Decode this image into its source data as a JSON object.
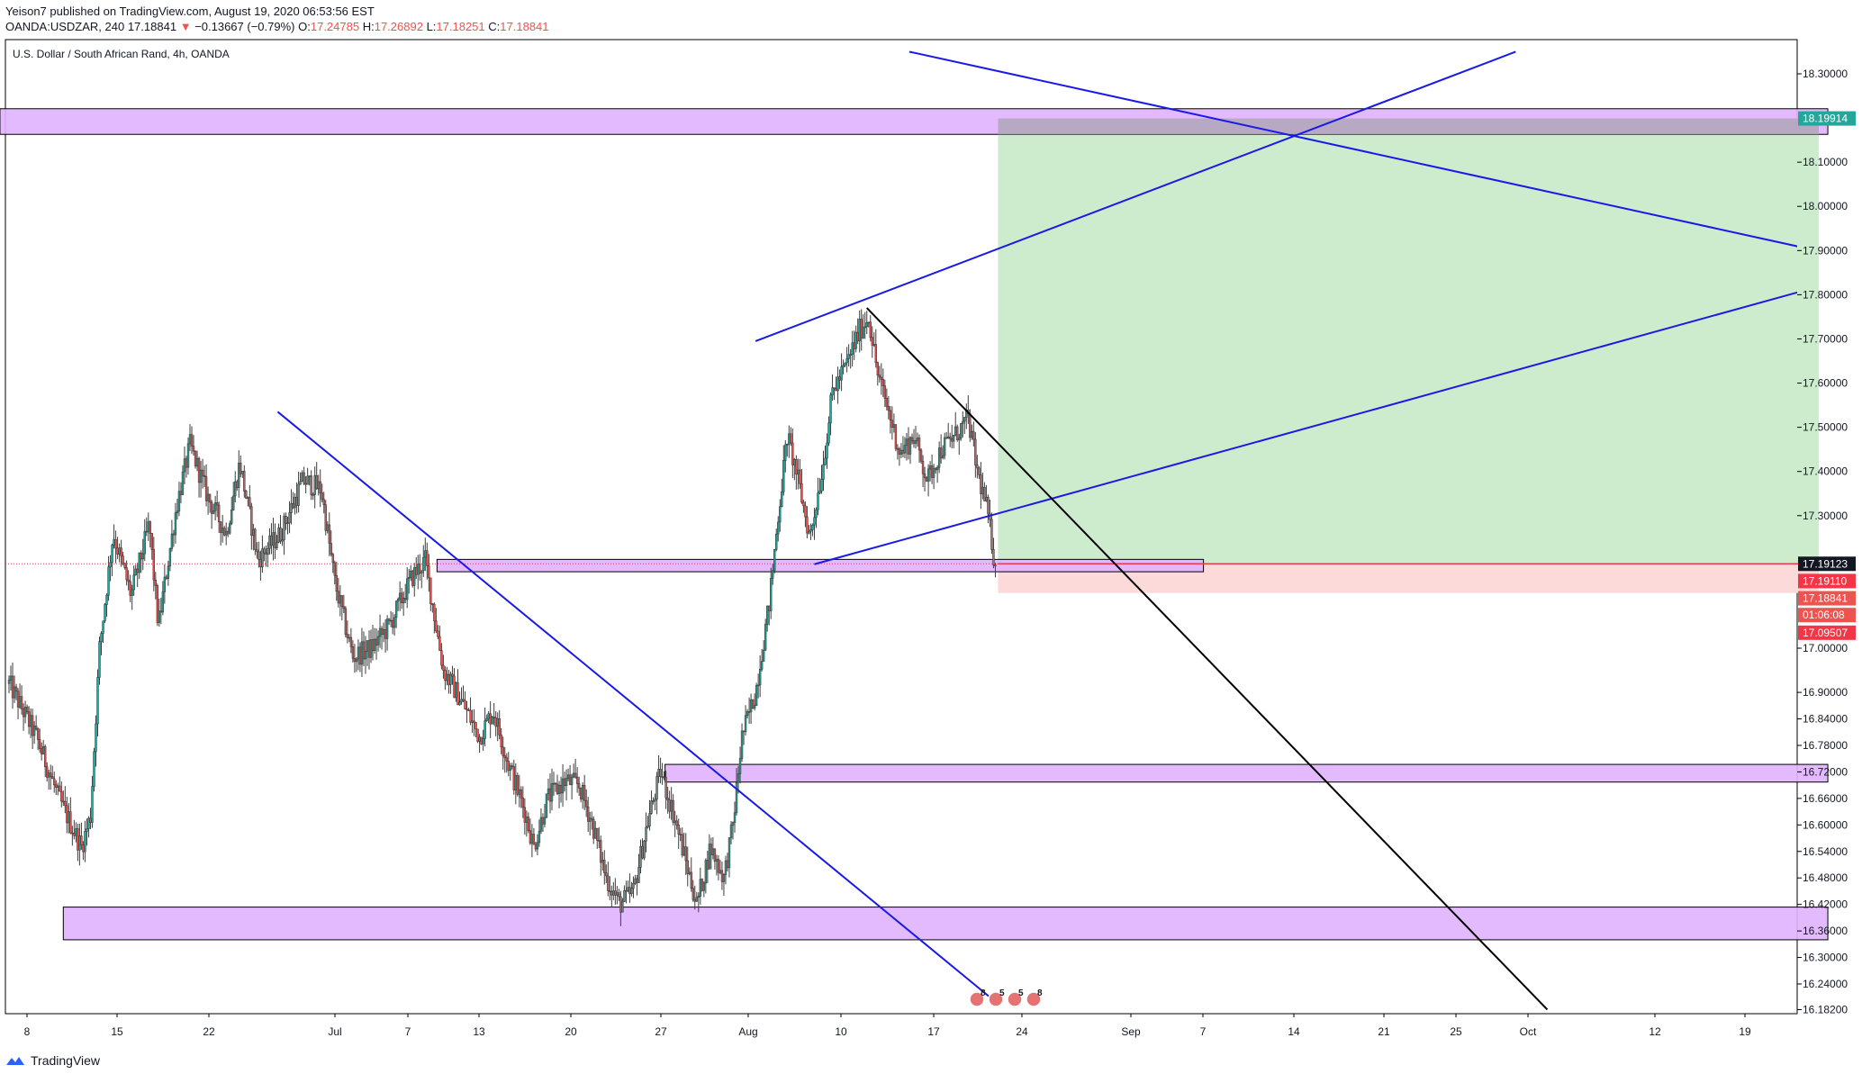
{
  "header": {
    "published_line": "Yeison7 published on TradingView.com, August 19, 2020 06:53:56 EST",
    "symbol": "OANDA:USDZAR, 240",
    "last": "17.18841",
    "change_arrow": "▼",
    "change": "−0.13667 (−0.79%)",
    "open_label": "O:",
    "open": "17.24785",
    "high_label": "H:",
    "high": "17.26892",
    "low_label": "L:",
    "low": "17.18251",
    "close_label": "C:",
    "close": "17.18841"
  },
  "footer": {
    "brand": "TradingView"
  },
  "colors": {
    "up": "#26a69a",
    "down": "#ef5350",
    "candle": "#3d3d3d",
    "zone": "#e1b3ff",
    "trendline": "#1a1ae6",
    "target": "#cdebcd",
    "stop": "#fddada",
    "price_line": "#f23645"
  },
  "chart_data": {
    "type": "candlestick",
    "title": "U.S. Dollar / South African Rand, 4h, OANDA",
    "x_ticks": [
      "8",
      "15",
      "22",
      "Jul",
      "7",
      "13",
      "20",
      "27",
      "Aug",
      "10",
      "17",
      "24",
      "Sep",
      "7",
      "14",
      "21",
      "25",
      "Oct",
      "12",
      "19"
    ],
    "y_ticks": [
      "18.30000",
      "18.10000",
      "18.00000",
      "17.90000",
      "17.80000",
      "17.70000",
      "17.60000",
      "17.50000",
      "17.40000",
      "17.30000",
      "17.00000",
      "16.90000",
      "16.84000",
      "16.78000",
      "16.72000",
      "16.66000",
      "16.60000",
      "16.54000",
      "16.48000",
      "16.42000",
      "16.36000",
      "16.30000",
      "16.24000",
      "16.18200"
    ],
    "y_range": [
      16.182,
      18.35
    ],
    "scale_labels": [
      {
        "text": "18.19914",
        "color": "#26a69a",
        "price": 18.199
      },
      {
        "text": "17.19123",
        "color": "#131722",
        "price": 17.191
      },
      {
        "text": "17.19110",
        "color": "#f23645",
        "price": 17.152
      },
      {
        "text": "17.18841",
        "color": "#ef5350",
        "price": 17.113
      },
      {
        "text": "01:06:08",
        "color": "#ef5350",
        "price": 17.075
      },
      {
        "text": "17.09507",
        "color": "#f23645",
        "price": 17.035
      }
    ],
    "price_path": [
      [
        0.0,
        16.92
      ],
      [
        3.0,
        16.8
      ],
      [
        5.5,
        16.66
      ],
      [
        8.0,
        16.55
      ],
      [
        9.0,
        16.62
      ],
      [
        10.0,
        17.0
      ],
      [
        11.5,
        17.26
      ],
      [
        13.5,
        17.12
      ],
      [
        15.5,
        17.28
      ],
      [
        16.5,
        17.05
      ],
      [
        18.5,
        17.32
      ],
      [
        20.0,
        17.46
      ],
      [
        22.0,
        17.34
      ],
      [
        24.0,
        17.26
      ],
      [
        25.5,
        17.42
      ],
      [
        27.5,
        17.2
      ],
      [
        30.0,
        17.26
      ],
      [
        32.5,
        17.38
      ],
      [
        34.5,
        17.36
      ],
      [
        36.0,
        17.15
      ],
      [
        38.0,
        16.98
      ],
      [
        40.0,
        17.0
      ],
      [
        42.0,
        17.05
      ],
      [
        44.5,
        17.16
      ],
      [
        46.0,
        17.2
      ],
      [
        48.0,
        16.95
      ],
      [
        50.0,
        16.88
      ],
      [
        52.0,
        16.8
      ],
      [
        53.5,
        16.86
      ],
      [
        55.0,
        16.75
      ],
      [
        57.0,
        16.63
      ],
      [
        58.0,
        16.55
      ],
      [
        59.5,
        16.66
      ],
      [
        61.5,
        16.7
      ],
      [
        63.0,
        16.69
      ],
      [
        64.5,
        16.6
      ],
      [
        66.0,
        16.48
      ],
      [
        67.5,
        16.42
      ],
      [
        69.0,
        16.45
      ],
      [
        70.5,
        16.6
      ],
      [
        72.0,
        16.72
      ],
      [
        73.5,
        16.62
      ],
      [
        75.0,
        16.5
      ],
      [
        76.0,
        16.42
      ],
      [
        77.5,
        16.55
      ],
      [
        79.0,
        16.48
      ],
      [
        80.0,
        16.6
      ],
      [
        81.0,
        16.8
      ],
      [
        82.5,
        16.9
      ],
      [
        84.0,
        17.1
      ],
      [
        85.0,
        17.3
      ],
      [
        86.0,
        17.48
      ],
      [
        87.0,
        17.4
      ],
      [
        88.5,
        17.25
      ],
      [
        90.0,
        17.42
      ],
      [
        91.0,
        17.58
      ],
      [
        92.5,
        17.64
      ],
      [
        94.0,
        17.72
      ],
      [
        95.0,
        17.75
      ],
      [
        96.0,
        17.62
      ],
      [
        97.0,
        17.55
      ],
      [
        98.5,
        17.44
      ],
      [
        100.0,
        17.48
      ],
      [
        101.5,
        17.38
      ],
      [
        103.0,
        17.45
      ],
      [
        104.5,
        17.48
      ],
      [
        106.0,
        17.52
      ],
      [
        107.0,
        17.4
      ],
      [
        108.0,
        17.32
      ],
      [
        109.0,
        17.19
      ]
    ],
    "zones": [
      {
        "name": "resistance-zone-top",
        "x0": -1,
        "x1": 201,
        "p0": 18.221,
        "p1": 18.163
      },
      {
        "name": "entry-zone",
        "x0": 47.3,
        "x1": 132,
        "p0": 17.201,
        "p1": 17.173
      },
      {
        "name": "support-zone-mid",
        "x0": 72.5,
        "x1": 201,
        "p0": 16.737,
        "p1": 16.697
      },
      {
        "name": "support-zone-bottom",
        "x0": 6,
        "x1": 201,
        "p0": 16.414,
        "p1": 16.34
      }
    ],
    "trendlines": [
      {
        "name": "upper-channel-line",
        "color": "#1a1ae6",
        "x0": 82.5,
        "p0": 17.695,
        "x1": 166.5,
        "p1": 18.35
      },
      {
        "name": "descending-resistance-line",
        "color": "#1a1ae6",
        "x0": 99.5,
        "p0": 18.35,
        "x1": 202,
        "p1": 17.89
      },
      {
        "name": "lower-channel-line",
        "color": "#1a1ae6",
        "x0": 89.0,
        "p0": 17.19,
        "x1": 202,
        "p1": 17.83
      },
      {
        "name": "downtrend-line-june",
        "color": "#1a1ae6",
        "x0": 29.7,
        "p0": 17.535,
        "x1": 109.0,
        "p1": 16.2
      },
      {
        "name": "black-downtrend-line",
        "color": "#000000",
        "x0": 94.8,
        "p0": 17.77,
        "x1": 170.0,
        "p1": 16.182
      }
    ],
    "position": {
      "type": "long",
      "x0": 109.3,
      "x1": 200.0,
      "entry": 17.191,
      "target": 18.199,
      "stop": 17.125
    },
    "current_price": 17.191,
    "events": [
      "8",
      "5",
      "5",
      "8"
    ]
  }
}
